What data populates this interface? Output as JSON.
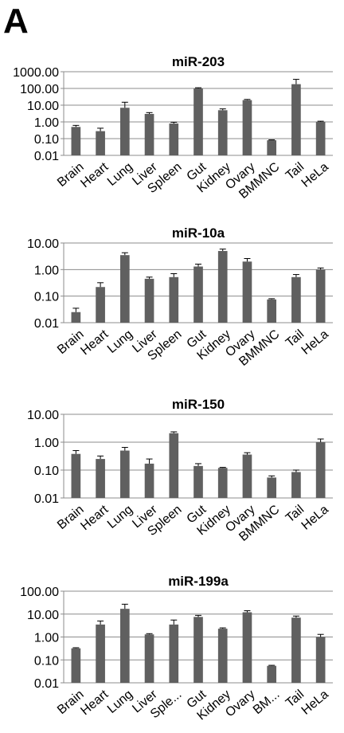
{
  "panel_label": "A",
  "chart_data": [
    {
      "type": "bar",
      "title": "miR-203",
      "yscale": "log",
      "ylim": [
        0.01,
        1000
      ],
      "yticks": [
        "0.01",
        "0.10",
        "1.00",
        "10.00",
        "100.00",
        "1000.00"
      ],
      "grid": true,
      "categories": [
        "Brain",
        "Heart",
        "Lung",
        "Liver",
        "Spleen",
        "Gut",
        "Kidney",
        "Ovary",
        "BMMNC",
        "Tail",
        "HeLa"
      ],
      "values": [
        0.5,
        0.28,
        7,
        3,
        0.8,
        100,
        5,
        20,
        0.08,
        180,
        1.0
      ],
      "errors_upper": [
        0.62,
        0.42,
        15,
        3.6,
        0.95,
        110,
        6,
        22,
        0.085,
        350,
        1.1
      ],
      "color": "#606060"
    },
    {
      "type": "bar",
      "title": "miR-10a",
      "yscale": "log",
      "ylim": [
        0.01,
        10
      ],
      "yticks": [
        "0.01",
        "0.10",
        "1.00",
        "10.00"
      ],
      "grid": true,
      "categories": [
        "Brain",
        "Heart",
        "Lung",
        "Liver",
        "Spleen",
        "Gut",
        "Kidney",
        "Ovary",
        "BMMNC",
        "Tail",
        "HeLa"
      ],
      "values": [
        0.025,
        0.22,
        3.5,
        0.45,
        0.52,
        1.3,
        5.0,
        2.0,
        0.075,
        0.52,
        1.0
      ],
      "errors_upper": [
        0.035,
        0.32,
        4.3,
        0.52,
        0.7,
        1.6,
        5.9,
        2.6,
        0.08,
        0.65,
        1.15
      ],
      "color": "#606060"
    },
    {
      "type": "bar",
      "title": "miR-150",
      "yscale": "log",
      "ylim": [
        0.01,
        10
      ],
      "yticks": [
        "0.01",
        "0.10",
        "1.00",
        "10.00"
      ],
      "grid": true,
      "categories": [
        "Brain",
        "Heart",
        "Lung",
        "Liver",
        "Spleen",
        "Gut",
        "Kidney",
        "Ovary",
        "BMMNC",
        "Tail",
        "HeLa"
      ],
      "values": [
        0.38,
        0.25,
        0.5,
        0.17,
        2.1,
        0.14,
        0.12,
        0.36,
        0.054,
        0.085,
        1.0
      ],
      "errors_upper": [
        0.5,
        0.32,
        0.65,
        0.25,
        2.35,
        0.17,
        0.125,
        0.42,
        0.062,
        0.1,
        1.3
      ],
      "color": "#606060"
    },
    {
      "type": "bar",
      "title": "miR-199a",
      "yscale": "log",
      "ylim": [
        0.01,
        100
      ],
      "yticks": [
        "0.01",
        "0.10",
        "1.00",
        "10.00",
        "100.00"
      ],
      "grid": true,
      "categories": [
        "Brain",
        "Heart",
        "Lung",
        "Liver",
        "Sple...",
        "Gut",
        "Kidney",
        "Ovary",
        "BM...",
        "Tail",
        "HeLa"
      ],
      "values": [
        0.32,
        3.5,
        17,
        1.3,
        3.5,
        7.5,
        2.3,
        12,
        0.055,
        7.0,
        1.0
      ],
      "errors_upper": [
        0.34,
        5.0,
        27,
        1.4,
        5.5,
        8.8,
        2.5,
        14,
        0.058,
        8.2,
        1.3
      ],
      "color": "#606060"
    }
  ]
}
